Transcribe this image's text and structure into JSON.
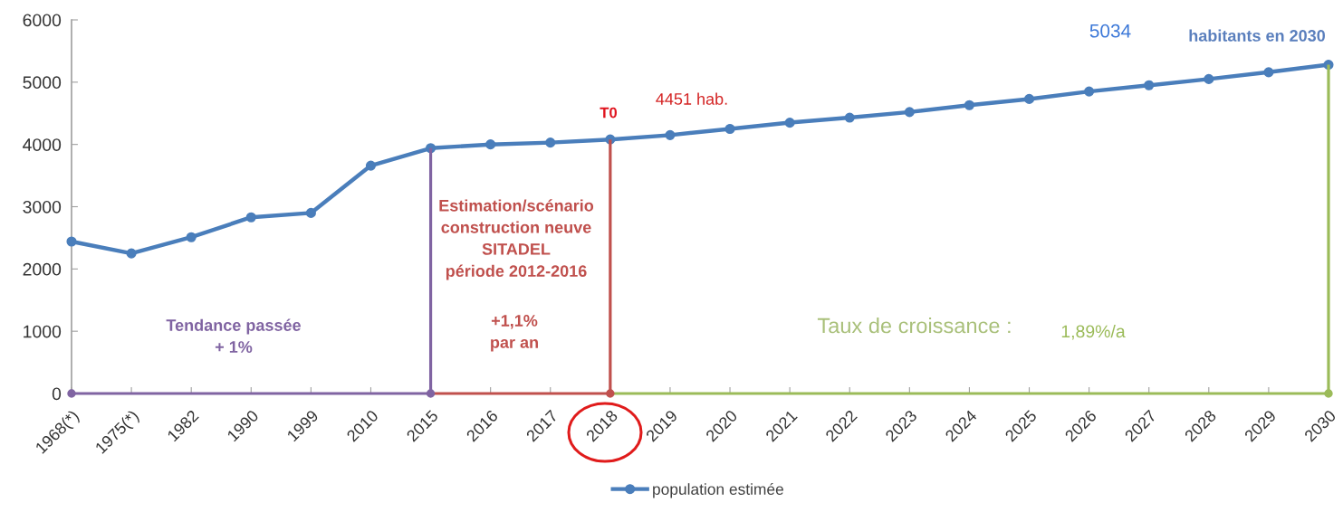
{
  "chart_data": {
    "type": "line",
    "categories": [
      "1968(*)",
      "1975(*)",
      "1982",
      "1990",
      "1999",
      "2010",
      "2015",
      "2016",
      "2017",
      "2018",
      "2019",
      "2020",
      "2021",
      "2022",
      "2023",
      "2024",
      "2025",
      "2026",
      "2027",
      "2028",
      "2029",
      "2030"
    ],
    "series": [
      {
        "type": "line",
        "color": "#8064a2",
        "marker": "none",
        "values": [
          0,
          0,
          0,
          0,
          0,
          0,
          0,
          null,
          null,
          null,
          null,
          null,
          null,
          null,
          null,
          null,
          null,
          null,
          null,
          null,
          null,
          null
        ],
        "errors": [
          null,
          null,
          null,
          null,
          null,
          null,
          [
            0,
            3940
          ],
          null,
          null,
          null,
          null,
          null,
          null,
          null,
          null,
          null,
          null,
          null,
          null,
          null,
          null,
          null
        ]
      },
      {
        "type": "line",
        "color": "#c0504d",
        "marker": "none",
        "values": [
          null,
          null,
          null,
          null,
          null,
          null,
          0,
          0,
          0,
          0,
          null,
          null,
          null,
          null,
          null,
          null,
          null,
          null,
          null,
          null,
          null,
          null
        ],
        "errors": [
          null,
          null,
          null,
          null,
          null,
          null,
          null,
          null,
          null,
          [
            0,
            4080
          ],
          null,
          null,
          null,
          null,
          null,
          null,
          null,
          null,
          null,
          null,
          null,
          null
        ]
      },
      {
        "type": "line",
        "color": "#9bbb59",
        "marker": "none",
        "values": [
          null,
          null,
          null,
          null,
          null,
          null,
          null,
          null,
          null,
          0,
          0,
          0,
          0,
          0,
          0,
          0,
          0,
          0,
          0,
          0,
          0,
          0
        ],
        "errors": [
          null,
          null,
          null,
          null,
          null,
          null,
          null,
          null,
          null,
          null,
          null,
          null,
          null,
          null,
          null,
          null,
          null,
          null,
          null,
          null,
          null,
          [
            0,
            5280
          ]
        ]
      },
      {
        "type": "scatter",
        "color": "#8064a2",
        "marker": "circle",
        "values": [
          0,
          null,
          null,
          null,
          null,
          null,
          0,
          null,
          null,
          null,
          null,
          null,
          null,
          null,
          null,
          null,
          null,
          null,
          null,
          null,
          null,
          null
        ]
      },
      {
        "type": "scatter",
        "color": "#c0504d",
        "marker": "circle",
        "values": [
          null,
          null,
          null,
          null,
          null,
          null,
          null,
          null,
          null,
          0,
          null,
          null,
          null,
          null,
          null,
          null,
          null,
          null,
          null,
          null,
          null,
          null
        ]
      },
      {
        "type": "scatter",
        "color": "#9bbb59",
        "marker": "circle",
        "values": [
          null,
          null,
          null,
          null,
          null,
          null,
          null,
          null,
          null,
          null,
          null,
          null,
          null,
          null,
          null,
          null,
          null,
          null,
          null,
          null,
          null,
          0
        ]
      },
      {
        "type": "line",
        "name": "population estimée",
        "color": "#4a7ebb",
        "marker": "circle",
        "values": [
          2440,
          2250,
          2510,
          2830,
          2900,
          3660,
          3940,
          4000,
          4030,
          4080,
          4150,
          4250,
          4350,
          4430,
          4520,
          4630,
          4730,
          4850,
          4950,
          5050,
          5160,
          5280
        ]
      }
    ],
    "ylim": [
      0,
      6000
    ],
    "yticks": [
      0,
      1000,
      2000,
      3000,
      4000,
      5000,
      6000
    ],
    "legend": "bottom",
    "annotations": [
      "5034",
      "habitants en 2030",
      "T0",
      "4451 hab.",
      "Estimation/scénario\nconstruction neuve\nSITADEL\npériode 2012-2016",
      "+1,1%\npar an",
      "Tendance passée\n+ 1%",
      "Taux de croissance :",
      "1,89%/a"
    ]
  }
}
